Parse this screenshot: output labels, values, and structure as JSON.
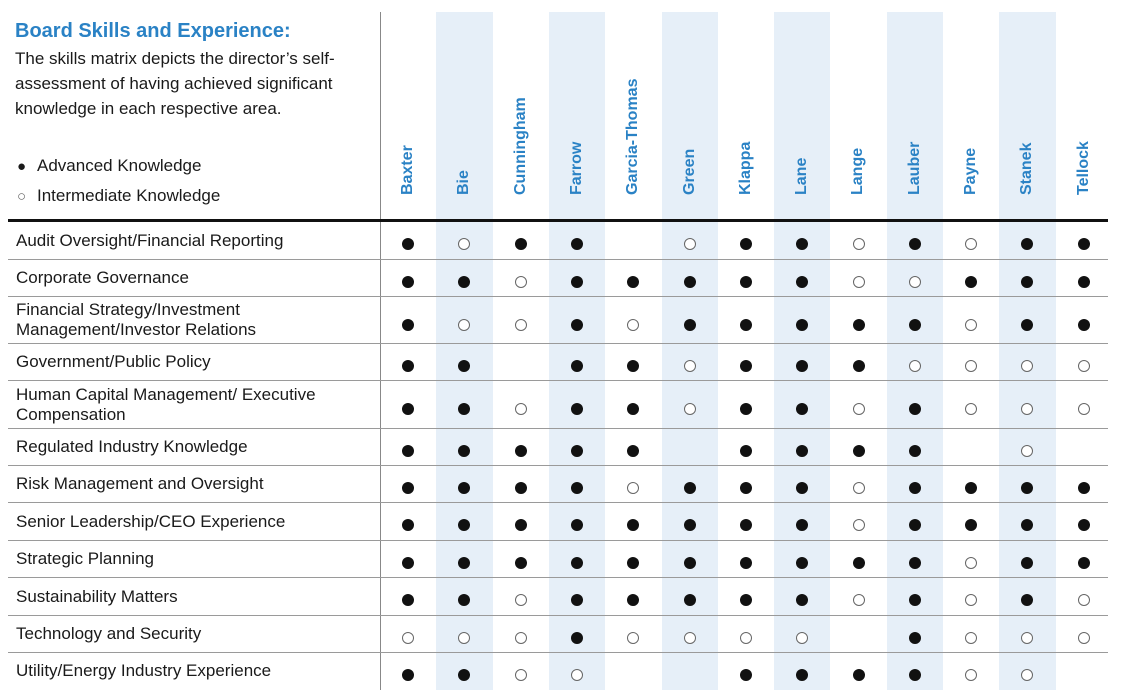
{
  "header": {
    "title": "Board Skills and Experience:",
    "description": "The skills matrix depicts the director’s self-assessment of having achieved significant knowledge in each respective area."
  },
  "legend": {
    "advanced_symbol": "●",
    "advanced_label": "Advanced Knowledge",
    "intermediate_symbol": "○",
    "intermediate_label": "Intermediate Knowledge"
  },
  "colors": {
    "accent": "#2a82c5",
    "stripe": "#e6eff8"
  },
  "directors": [
    "Baxter",
    "Bie",
    "Cunningham",
    "Farrow",
    "Garcia-Thomas",
    "Green",
    "Klappa",
    "Lane",
    "Lange",
    "Lauber",
    "Payne",
    "Stanek",
    "Tellock"
  ],
  "skills": [
    {
      "label": "Audit Oversight/Financial Reporting",
      "ratings": [
        "A",
        "I",
        "A",
        "A",
        "",
        "I",
        "A",
        "A",
        "I",
        "A",
        "I",
        "A",
        "A"
      ]
    },
    {
      "label": "Corporate Governance",
      "ratings": [
        "A",
        "A",
        "I",
        "A",
        "A",
        "A",
        "A",
        "A",
        "I",
        "I",
        "A",
        "A",
        "A"
      ]
    },
    {
      "label": "Financial Strategy/Investment Management/Investor Relations",
      "ratings": [
        "A",
        "I",
        "I",
        "A",
        "I",
        "A",
        "A",
        "A",
        "A",
        "A",
        "I",
        "A",
        "A"
      ]
    },
    {
      "label": "Government/Public Policy",
      "ratings": [
        "A",
        "A",
        "",
        "A",
        "A",
        "I",
        "A",
        "A",
        "A",
        "I",
        "I",
        "I",
        "I"
      ]
    },
    {
      "label": "Human Capital Management/ Executive Compensation",
      "ratings": [
        "A",
        "A",
        "I",
        "A",
        "A",
        "I",
        "A",
        "A",
        "I",
        "A",
        "I",
        "I",
        "I"
      ]
    },
    {
      "label": "Regulated Industry Knowledge",
      "ratings": [
        "A",
        "A",
        "A",
        "A",
        "A",
        "",
        "A",
        "A",
        "A",
        "A",
        "",
        "I",
        ""
      ]
    },
    {
      "label": "Risk Management and Oversight",
      "ratings": [
        "A",
        "A",
        "A",
        "A",
        "I",
        "A",
        "A",
        "A",
        "I",
        "A",
        "A",
        "A",
        "A"
      ]
    },
    {
      "label": "Senior Leadership/CEO Experience",
      "ratings": [
        "A",
        "A",
        "A",
        "A",
        "A",
        "A",
        "A",
        "A",
        "I",
        "A",
        "A",
        "A",
        "A"
      ]
    },
    {
      "label": "Strategic Planning",
      "ratings": [
        "A",
        "A",
        "A",
        "A",
        "A",
        "A",
        "A",
        "A",
        "A",
        "A",
        "I",
        "A",
        "A"
      ]
    },
    {
      "label": "Sustainability Matters",
      "ratings": [
        "A",
        "A",
        "I",
        "A",
        "A",
        "A",
        "A",
        "A",
        "I",
        "A",
        "I",
        "A",
        "I"
      ]
    },
    {
      "label": "Technology and Security",
      "ratings": [
        "I",
        "I",
        "I",
        "A",
        "I",
        "I",
        "I",
        "I",
        "",
        "A",
        "I",
        "I",
        "I"
      ]
    },
    {
      "label": "Utility/Energy Industry Experience",
      "ratings": [
        "A",
        "A",
        "I",
        "I",
        "",
        "",
        "A",
        "A",
        "A",
        "A",
        "I",
        "I",
        ""
      ]
    }
  ]
}
